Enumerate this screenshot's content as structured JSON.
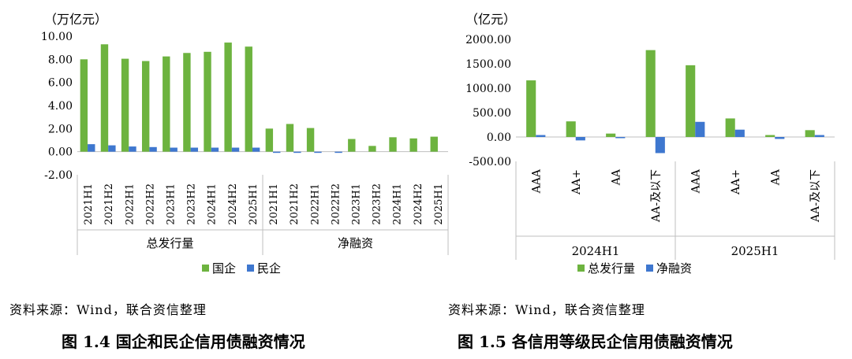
{
  "charts": [
    {
      "type": "bar",
      "unit": "（万亿元）",
      "yticks": [
        "10.00",
        "8.00",
        "6.00",
        "4.00",
        "2.00",
        "0.00",
        "-2.00"
      ],
      "ylim": [
        -2,
        10
      ],
      "groups": [
        {
          "label": "总发行量",
          "categories": [
            "2021H1",
            "2021H2",
            "2022H1",
            "2022H2",
            "2023H1",
            "2023H2",
            "2024H1",
            "2024H2",
            "2025H1"
          ]
        },
        {
          "label": "净融资",
          "categories": [
            "2021H1",
            "2021H2",
            "2022H1",
            "2022H2",
            "2023H1",
            "2023H2",
            "2024H1",
            "2024H2",
            "2025H1"
          ]
        }
      ],
      "series": [
        {
          "name": "国企",
          "color": "#6DB33F",
          "values": [
            8.0,
            9.3,
            8.05,
            7.85,
            8.25,
            8.55,
            8.65,
            9.45,
            9.1,
            2.0,
            2.4,
            2.05,
            0.0,
            1.1,
            0.5,
            1.25,
            1.15,
            1.3
          ]
        },
        {
          "name": "民企",
          "color": "#3E77CF",
          "values": [
            0.65,
            0.55,
            0.45,
            0.4,
            0.35,
            0.35,
            0.35,
            0.35,
            0.35,
            -0.05,
            -0.1,
            -0.05,
            -0.1,
            0.0,
            0.0,
            0.0,
            0.0,
            0.0
          ]
        }
      ]
    },
    {
      "type": "bar",
      "unit": "（亿元）",
      "yticks": [
        "2000.00",
        "1500.00",
        "1000.00",
        "500.00",
        "0.00",
        "-500.00"
      ],
      "ylim": [
        -500,
        2000
      ],
      "groups": [
        {
          "label": "2024H1",
          "categories": [
            "AAA",
            "AA+",
            "AA",
            "AA-及以下"
          ]
        },
        {
          "label": "2025H1",
          "categories": [
            "AAA",
            "AA+",
            "AA",
            "AA-及以下"
          ]
        }
      ],
      "series": [
        {
          "name": "总发行量",
          "color": "#6DB33F",
          "values": [
            1160,
            320,
            70,
            1780,
            1470,
            380,
            40,
            140
          ]
        },
        {
          "name": "净融资",
          "color": "#3E77CF",
          "values": [
            40,
            -70,
            -20,
            -330,
            310,
            150,
            -40,
            40
          ]
        }
      ]
    }
  ],
  "sources": [
    "资料来源：Wind，联合资信整理",
    "资料来源：Wind，联合资信整理"
  ],
  "captions": [
    "图 1.4    国企和民企信用债融资情况",
    "图 1.5    各信用等级民企信用债融资情况"
  ]
}
